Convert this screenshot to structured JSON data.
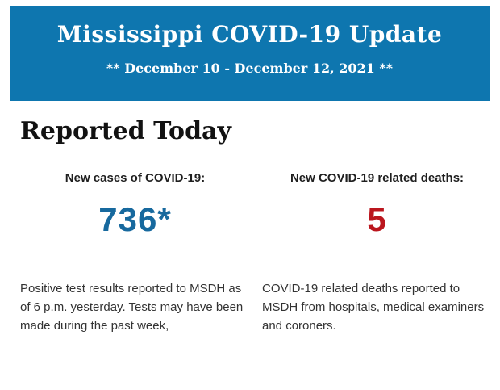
{
  "banner": {
    "title": "Mississippi COVID-19 Update",
    "subtitle": "** December 10 - December 12, 2021 **",
    "background_color": "#0e76af",
    "text_color": "#ffffff"
  },
  "section": {
    "heading": "Reported Today"
  },
  "stats": [
    {
      "label": "New cases of COVID-19:",
      "value": "736*",
      "value_color": "#17699e",
      "description": "Positive test results reported to MSDH as of 6 p.m. yesterday. Tests may have been made during the past week,"
    },
    {
      "label": "New COVID-19 related deaths:",
      "value": "5",
      "value_color": "#bb161e",
      "description": "COVID-19 related deaths reported to MSDH from hospitals, medical examiners and coroners."
    }
  ]
}
